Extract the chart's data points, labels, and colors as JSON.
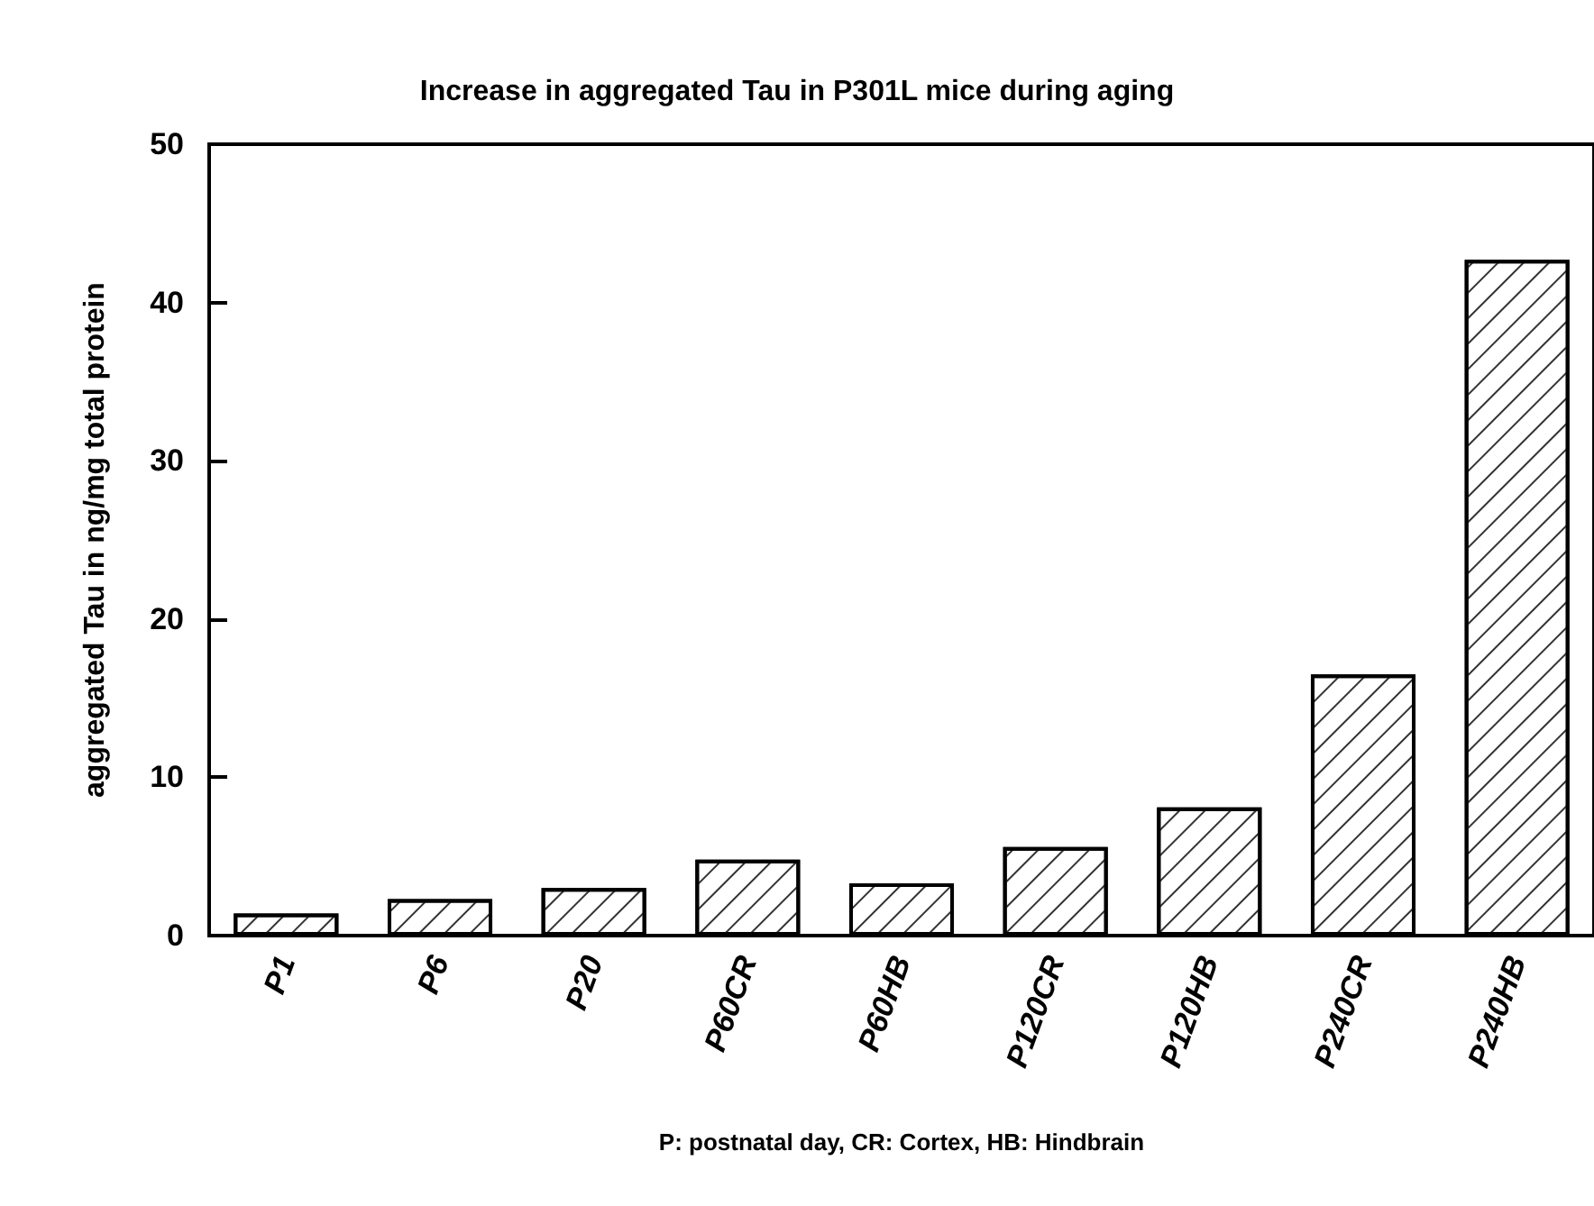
{
  "chart_data": {
    "type": "bar",
    "title": "Increase in aggregated Tau in P301L mice during aging",
    "xlabel": "P: postnatal day, CR: Cortex, HB: Hindbrain",
    "ylabel": "aggregated Tau in ng/mg total protein",
    "categories": [
      "P1",
      "P6",
      "P20",
      "P60CR",
      "P60HB",
      "P120CR",
      "P120HB",
      "P240CR",
      "P240HB"
    ],
    "values": [
      1.4,
      2.3,
      3.0,
      4.8,
      3.3,
      5.6,
      8.1,
      16.5,
      42.7
    ],
    "color": "#ffffff",
    "ylim": [
      0,
      50
    ],
    "yticks": [
      0,
      10,
      20,
      30,
      40,
      50
    ]
  }
}
